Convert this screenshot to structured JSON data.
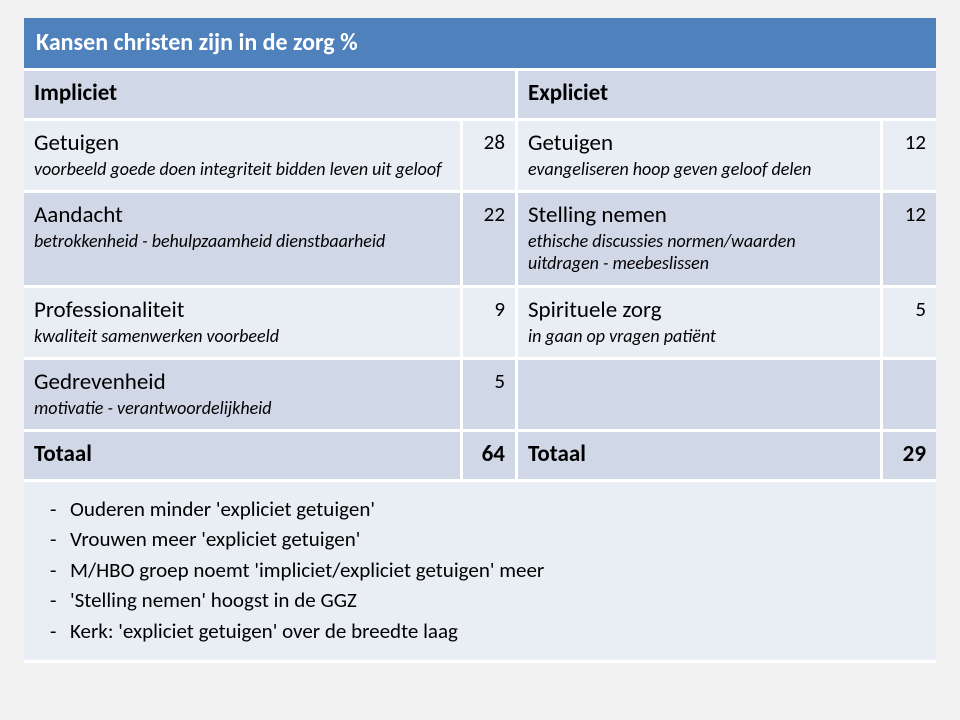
{
  "title": "Kansen christen zijn in de zorg %",
  "header": {
    "left": "Impliciet",
    "right": "Expliciet"
  },
  "rows": [
    {
      "left_label": "Getuigen",
      "left_sub": "voorbeeld goede doen integriteit bidden leven uit geloof",
      "left_val": "28",
      "right_label": "Getuigen",
      "right_sub": "evangeliseren hoop geven geloof delen",
      "right_val": "12"
    },
    {
      "left_label": "Aandacht",
      "left_sub": "betrokkenheid - behulpzaamheid dienstbaarheid",
      "left_val": "22",
      "right_label": "Stelling nemen",
      "right_sub": "ethische discussies normen/waarden uitdragen - meebeslissen",
      "right_val": "12"
    },
    {
      "left_label": "Professionaliteit",
      "left_sub": "kwaliteit samenwerken voorbeeld",
      "left_val": "9",
      "right_label": "Spirituele zorg",
      "right_sub": "in gaan op vragen patiënt",
      "right_val": "5"
    },
    {
      "left_label": "Gedrevenheid",
      "left_sub": "motivatie - verantwoordelijkheid",
      "left_val": "5",
      "right_label": "",
      "right_sub": "",
      "right_val": ""
    }
  ],
  "total": {
    "left_label": "Totaal",
    "left_val": "64",
    "right_label": "Totaal",
    "right_val": "29"
  },
  "bullets": [
    "Ouderen minder 'expliciet getuigen'",
    "Vrouwen meer 'expliciet getuigen'",
    "M/HBO groep noemt 'impliciet/expliciet getuigen' meer",
    "'Stelling nemen' hoogst in de GGZ",
    "Kerk: 'expliciet getuigen' over de breedte laag"
  ],
  "colors": {
    "title_bg": "#4f81bd",
    "header_bg": "#d0d8e8",
    "odd_bg": "#e9edf4",
    "even_bg": "#d0d8e8",
    "page_bg": "#f2f2f2"
  },
  "fonts": {
    "title_pt": 24,
    "header_pt": 23,
    "label_pt": 23,
    "sub_pt": 18,
    "bullet_pt": 21
  }
}
